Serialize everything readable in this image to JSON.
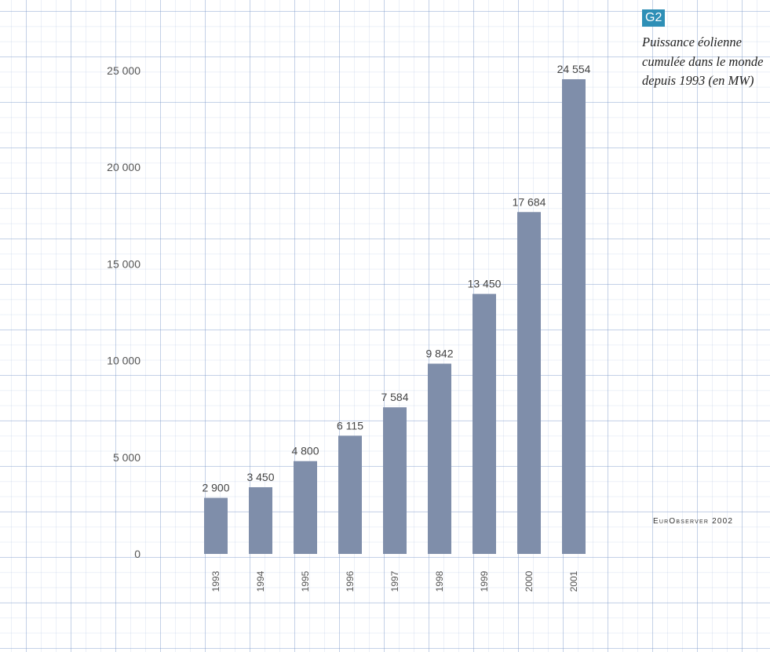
{
  "badge": "G2",
  "title": "Puissance éolienne cumulée dans le monde depuis 1993 (en MW)",
  "source": "EurObserver 2002",
  "colors": {
    "bar": "#7f8eaa",
    "badge": "#2e8fb6"
  },
  "chart_data": {
    "type": "bar",
    "categories": [
      "1993",
      "1994",
      "1995",
      "1996",
      "1997",
      "1998",
      "1999",
      "2000",
      "2001"
    ],
    "values": [
      2900,
      3450,
      4800,
      6115,
      7584,
      9842,
      13450,
      17684,
      24554
    ],
    "value_labels": [
      "2 900",
      "3 450",
      "4 800",
      "6 115",
      "7 584",
      "9 842",
      "13 450",
      "17 684",
      "24 554"
    ],
    "y_ticks": [
      0,
      5000,
      10000,
      15000,
      20000,
      25000
    ],
    "y_tick_labels": [
      "0",
      "5 000",
      "10 000",
      "15 000",
      "20 000",
      "25 000"
    ],
    "ylim": [
      0,
      25000
    ],
    "grid": true
  }
}
